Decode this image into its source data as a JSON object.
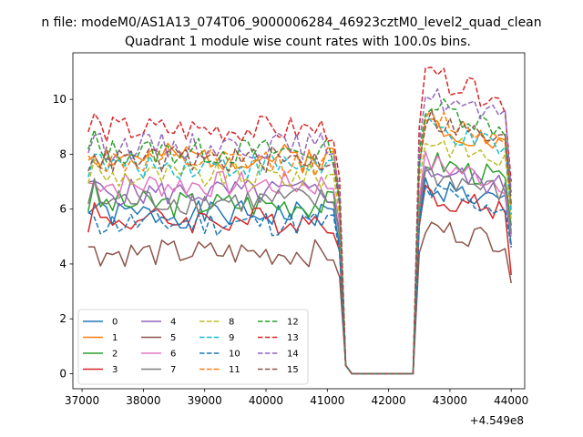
{
  "figure": {
    "suptitle": "n file: modeM0/AS1A13_074T06_9000006284_46923cztM0_level2_quad_clean",
    "title": "Quadrant 1 module wise count rates with 100.0s bins."
  },
  "chart_data": {
    "type": "line",
    "suptitle": "n file: modeM0/AS1A13_074T06_9000006284_46923cztM0_level2_quad_clean",
    "title": "Quadrant 1 module wise count rates with 100.0s bins.",
    "xlabel": "",
    "ylabel": "",
    "x_offset_label": "+4.549e8",
    "x_offset": 454900000,
    "xlim": [
      36850,
      44220
    ],
    "ylim": [
      -0.55,
      11.7
    ],
    "xticks": [
      37000,
      38000,
      39000,
      40000,
      41000,
      42000,
      43000,
      44000
    ],
    "xtick_labels": [
      "37000",
      "38000",
      "39000",
      "40000",
      "41000",
      "42000",
      "43000",
      "44000"
    ],
    "yticks": [
      0,
      2,
      4,
      6,
      8,
      10
    ],
    "ytick_labels": [
      "0",
      "2",
      "4",
      "6",
      "8",
      "10"
    ],
    "grid": false,
    "legend": {
      "placement": "lower-left",
      "columns": 4
    },
    "segments": {
      "first": {
        "x_start": 37100,
        "x_end": 41200,
        "step": 100
      },
      "drop": [
        {
          "x": 41300,
          "y": 0.3
        }
      ],
      "gap": {
        "x_start": 41400,
        "x_end": 42400,
        "y": 0
      },
      "second": {
        "x_start": 42500,
        "x_end": 44000,
        "step": 100
      }
    },
    "series": [
      {
        "name": "0",
        "color": "#1f77b4",
        "dash": "solid",
        "level": 5.8,
        "level2": 6.4,
        "end": 4.7,
        "seed": 1
      },
      {
        "name": "1",
        "color": "#ff7f0e",
        "dash": "solid",
        "level": 7.9,
        "level2": 8.6,
        "end": 6.0,
        "seed": 2
      },
      {
        "name": "2",
        "color": "#2ca02c",
        "dash": "solid",
        "level": 6.2,
        "level2": 7.3,
        "end": 5.4,
        "seed": 3
      },
      {
        "name": "3",
        "color": "#d62728",
        "dash": "solid",
        "level": 5.6,
        "level2": 6.1,
        "end": 3.6,
        "seed": 4
      },
      {
        "name": "4",
        "color": "#9467bd",
        "dash": "solid",
        "level": 6.6,
        "level2": 7.0,
        "end": 5.2,
        "seed": 5
      },
      {
        "name": "5",
        "color": "#8c564b",
        "dash": "solid",
        "level": 4.4,
        "level2": 5.0,
        "end": 3.3,
        "seed": 6
      },
      {
        "name": "6",
        "color": "#e377c2",
        "dash": "solid",
        "level": 6.9,
        "level2": 7.2,
        "end": 5.0,
        "seed": 7
      },
      {
        "name": "7",
        "color": "#7f7f7f",
        "dash": "solid",
        "level": 6.3,
        "level2": 6.8,
        "end": 5.1,
        "seed": 8
      },
      {
        "name": "8",
        "color": "#bcbd22",
        "dash": "dashed",
        "level": 7.2,
        "level2": 8.0,
        "end": 5.6,
        "seed": 9
      },
      {
        "name": "9",
        "color": "#17becf",
        "dash": "dashed",
        "level": 7.6,
        "level2": 8.4,
        "end": 5.8,
        "seed": 10
      },
      {
        "name": "10",
        "color": "#1f77b4",
        "dash": "dashed",
        "level": 5.5,
        "level2": 6.2,
        "end": 4.6,
        "seed": 11
      },
      {
        "name": "11",
        "color": "#ff7f0e",
        "dash": "dashed",
        "level": 7.7,
        "level2": 8.8,
        "end": 6.1,
        "seed": 12
      },
      {
        "name": "12",
        "color": "#2ca02c",
        "dash": "dashed",
        "level": 8.1,
        "level2": 9.2,
        "end": 6.5,
        "seed": 13
      },
      {
        "name": "13",
        "color": "#d62728",
        "dash": "dashed",
        "level": 8.9,
        "level2": 10.2,
        "end": 7.0,
        "seed": 14
      },
      {
        "name": "14",
        "color": "#9467bd",
        "dash": "dashed",
        "level": 8.3,
        "level2": 9.5,
        "end": 6.6,
        "seed": 15
      },
      {
        "name": "15",
        "color": "#8c564b",
        "dash": "dashed",
        "level": 7.8,
        "level2": 8.7,
        "end": 6.2,
        "seed": 16
      }
    ]
  }
}
